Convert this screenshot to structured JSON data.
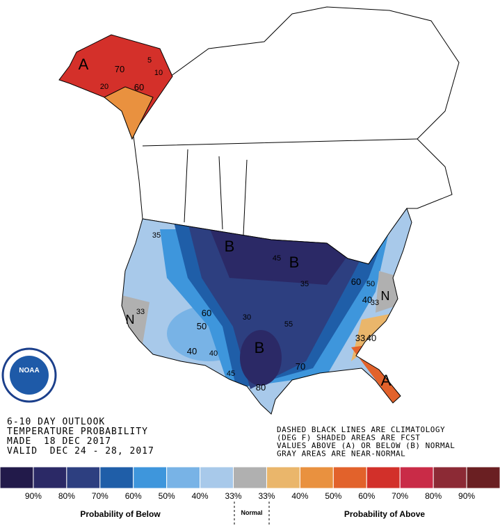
{
  "outlook": {
    "title": "6-10 DAY OUTLOOK",
    "subtitle": "TEMPERATURE PROBABILITY",
    "made": "MADE  18 DEC 2017",
    "valid": "VALID  DEC 24 - 28, 2017"
  },
  "notes": [
    "DASHED BLACK LINES ARE CLIMATOLOGY",
    "(DEG F) SHADED AREAS ARE FCST",
    "VALUES ABOVE (A) OR BELOW (B) NORMAL",
    "GRAY AREAS ARE NEAR-NORMAL"
  ],
  "logo": "NOAA",
  "map_labels": [
    "A",
    "70",
    "60",
    "5",
    "10",
    "20",
    "B",
    "B",
    "35",
    "45",
    "35",
    "N",
    "33",
    "60",
    "50",
    "40",
    "40",
    "B",
    "45",
    "80",
    "70",
    "30",
    "55",
    "A",
    "N",
    "33",
    "33",
    "40",
    "60",
    "50",
    "40"
  ],
  "legend": {
    "colors": [
      "#221a4a",
      "#2b2966",
      "#2d3f80",
      "#1f5ea8",
      "#3e96dc",
      "#78b3e6",
      "#a8c9ea",
      "#b0b0b0",
      "#eab66b",
      "#e9913f",
      "#e2622b",
      "#d2302a",
      "#c92b47",
      "#8c2a35",
      "#6a1f22"
    ],
    "labels": [
      "90%",
      "80%",
      "70%",
      "60%",
      "50%",
      "40%",
      "33%",
      "33%",
      "40%",
      "50%",
      "60%",
      "70%",
      "80%",
      "90%"
    ],
    "below": "Probability of Below",
    "normal": "Normal",
    "above": "Probability of Above"
  }
}
